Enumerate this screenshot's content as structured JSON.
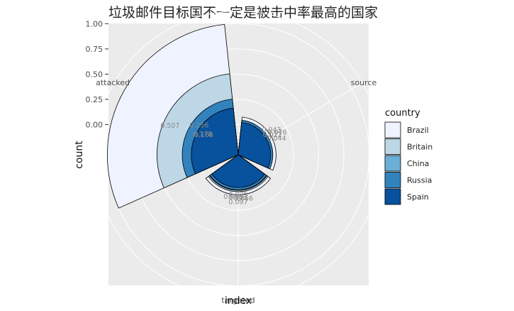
{
  "chart_data": {
    "type": "polar-bar",
    "title": "垃圾邮件目标国不一定是被击中率最高的国家",
    "xlabel": "index",
    "ylabel": "count",
    "categories": [
      "source",
      "targeted",
      "attacked"
    ],
    "y_ticks": [
      "0.00",
      "0.25",
      "0.50",
      "0.75",
      "1.00"
    ],
    "ylim": [
      -0.3,
      1.05
    ],
    "legend": {
      "title": "country",
      "position": "right"
    },
    "series": [
      {
        "name": "Brazil",
        "color": "#EFF3FF",
        "values": [
          0.076,
          0.097,
          1.0
        ],
        "labels": [
          "0.076",
          "0.097",
          ""
        ]
      },
      {
        "name": "Britain",
        "color": "#BDD7E7",
        "values": [
          0.043,
          0.066,
          0.507
        ],
        "labels": [
          "0.043",
          "0.066",
          "0.507"
        ]
      },
      {
        "name": "China",
        "color": "#6BAED6",
        "values": [
          0.022,
          0.053,
          0.178
        ],
        "labels": [
          "0.022",
          "0.053",
          "0.178"
        ]
      },
      {
        "name": "Russia",
        "color": "#3182BD",
        "values": [
          0.044,
          0.048,
          0.256
        ],
        "labels": [
          "0.044",
          "0.048",
          "0.256"
        ]
      },
      {
        "name": "Spain",
        "color": "#08519C",
        "values": [
          0.022,
          0.025,
          0.166
        ],
        "labels": [
          "0.022",
          "0.025",
          "0.166"
        ]
      }
    ]
  }
}
